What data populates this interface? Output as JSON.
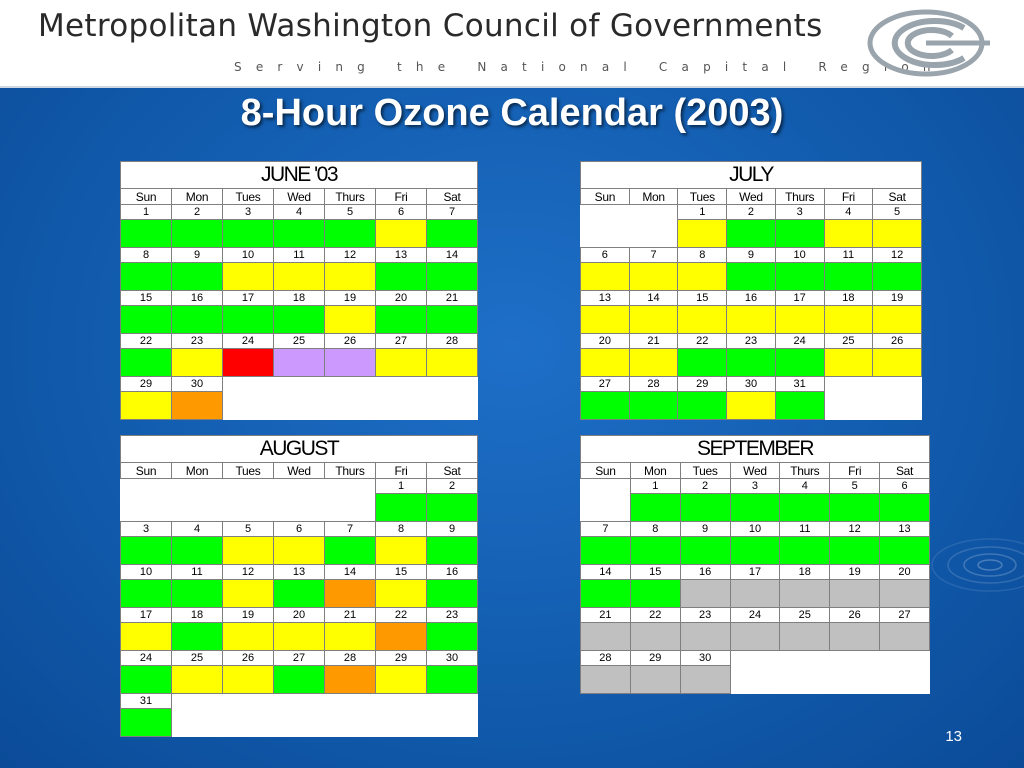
{
  "header": {
    "org_name": "Metropolitan Washington Council of Governments",
    "tagline": "Serving the National Capital Region"
  },
  "title": "8-Hour Ozone Calendar (2003)",
  "page_number": "13",
  "days_of_week": [
    "Sun",
    "Mon",
    "Tues",
    "Wed",
    "Thurs",
    "Fri",
    "Sat"
  ],
  "legend_colors": {
    "g": "#00ff00",
    "y": "#ffff00",
    "r": "#ff0000",
    "p": "#cc99ff",
    "o": "#ff9900",
    "s": "#c0c0c0"
  },
  "calendars": [
    {
      "month": "JUNE '03",
      "weeks": [
        {
          "days": [
            "1",
            "2",
            "3",
            "4",
            "5",
            "6",
            "7"
          ],
          "colors": [
            "g",
            "g",
            "g",
            "g",
            "g",
            "y",
            "g"
          ]
        },
        {
          "days": [
            "8",
            "9",
            "10",
            "11",
            "12",
            "13",
            "14"
          ],
          "colors": [
            "g",
            "g",
            "y",
            "y",
            "y",
            "g",
            "g"
          ]
        },
        {
          "days": [
            "15",
            "16",
            "17",
            "18",
            "19",
            "20",
            "21"
          ],
          "colors": [
            "g",
            "g",
            "g",
            "g",
            "y",
            "g",
            "g"
          ]
        },
        {
          "days": [
            "22",
            "23",
            "24",
            "25",
            "26",
            "27",
            "28"
          ],
          "colors": [
            "g",
            "y",
            "r",
            "p",
            "p",
            "y",
            "y"
          ]
        },
        {
          "days": [
            "29",
            "30",
            "",
            "",
            "",
            "",
            ""
          ],
          "colors": [
            "y",
            "o",
            "",
            "",
            "",
            "",
            ""
          ]
        }
      ]
    },
    {
      "month": "JULY",
      "weeks": [
        {
          "days": [
            "",
            "",
            "1",
            "2",
            "3",
            "4",
            "5"
          ],
          "colors": [
            "",
            "",
            "y",
            "g",
            "g",
            "y",
            "y"
          ]
        },
        {
          "days": [
            "6",
            "7",
            "8",
            "9",
            "10",
            "11",
            "12"
          ],
          "colors": [
            "y",
            "y",
            "y",
            "g",
            "g",
            "g",
            "g"
          ]
        },
        {
          "days": [
            "13",
            "14",
            "15",
            "16",
            "17",
            "18",
            "19"
          ],
          "colors": [
            "y",
            "y",
            "y",
            "y",
            "y",
            "y",
            "y"
          ]
        },
        {
          "days": [
            "20",
            "21",
            "22",
            "23",
            "24",
            "25",
            "26"
          ],
          "colors": [
            "y",
            "y",
            "g",
            "g",
            "g",
            "y",
            "y"
          ]
        },
        {
          "days": [
            "27",
            "28",
            "29",
            "30",
            "31",
            "",
            ""
          ],
          "colors": [
            "g",
            "g",
            "g",
            "y",
            "g",
            "",
            ""
          ]
        }
      ]
    },
    {
      "month": "AUGUST",
      "weeks": [
        {
          "days": [
            "",
            "",
            "",
            "",
            "",
            "1",
            "2"
          ],
          "colors": [
            "",
            "",
            "",
            "",
            "",
            "g",
            "g"
          ]
        },
        {
          "days": [
            "3",
            "4",
            "5",
            "6",
            "7",
            "8",
            "9"
          ],
          "colors": [
            "g",
            "g",
            "y",
            "y",
            "g",
            "y",
            "g"
          ]
        },
        {
          "days": [
            "10",
            "11",
            "12",
            "13",
            "14",
            "15",
            "16"
          ],
          "colors": [
            "g",
            "g",
            "y",
            "g",
            "o",
            "y",
            "g"
          ]
        },
        {
          "days": [
            "17",
            "18",
            "19",
            "20",
            "21",
            "22",
            "23"
          ],
          "colors": [
            "y",
            "g",
            "y",
            "y",
            "y",
            "o",
            "g"
          ]
        },
        {
          "days": [
            "24",
            "25",
            "26",
            "27",
            "28",
            "29",
            "30"
          ],
          "colors": [
            "g",
            "y",
            "y",
            "g",
            "o",
            "y",
            "g"
          ]
        },
        {
          "days": [
            "31",
            "",
            "",
            "",
            "",
            "",
            ""
          ],
          "colors": [
            "g",
            "",
            "",
            "",
            "",
            "",
            ""
          ]
        }
      ]
    },
    {
      "month": "SEPTEMBER",
      "weeks": [
        {
          "days": [
            "",
            "1",
            "2",
            "3",
            "4",
            "5",
            "6"
          ],
          "colors": [
            "",
            "g",
            "g",
            "g",
            "g",
            "g",
            "g"
          ]
        },
        {
          "days": [
            "7",
            "8",
            "9",
            "10",
            "11",
            "12",
            "13"
          ],
          "colors": [
            "g",
            "g",
            "g",
            "g",
            "g",
            "g",
            "g"
          ]
        },
        {
          "days": [
            "14",
            "15",
            "16",
            "17",
            "18",
            "19",
            "20"
          ],
          "colors": [
            "g",
            "g",
            "s",
            "s",
            "s",
            "s",
            "s"
          ]
        },
        {
          "days": [
            "21",
            "22",
            "23",
            "24",
            "25",
            "26",
            "27"
          ],
          "colors": [
            "s",
            "s",
            "s",
            "s",
            "s",
            "s",
            "s"
          ]
        },
        {
          "days": [
            "28",
            "29",
            "30",
            "",
            "",
            "",
            ""
          ],
          "colors": [
            "s",
            "s",
            "s",
            "",
            "",
            "",
            ""
          ]
        }
      ]
    }
  ]
}
